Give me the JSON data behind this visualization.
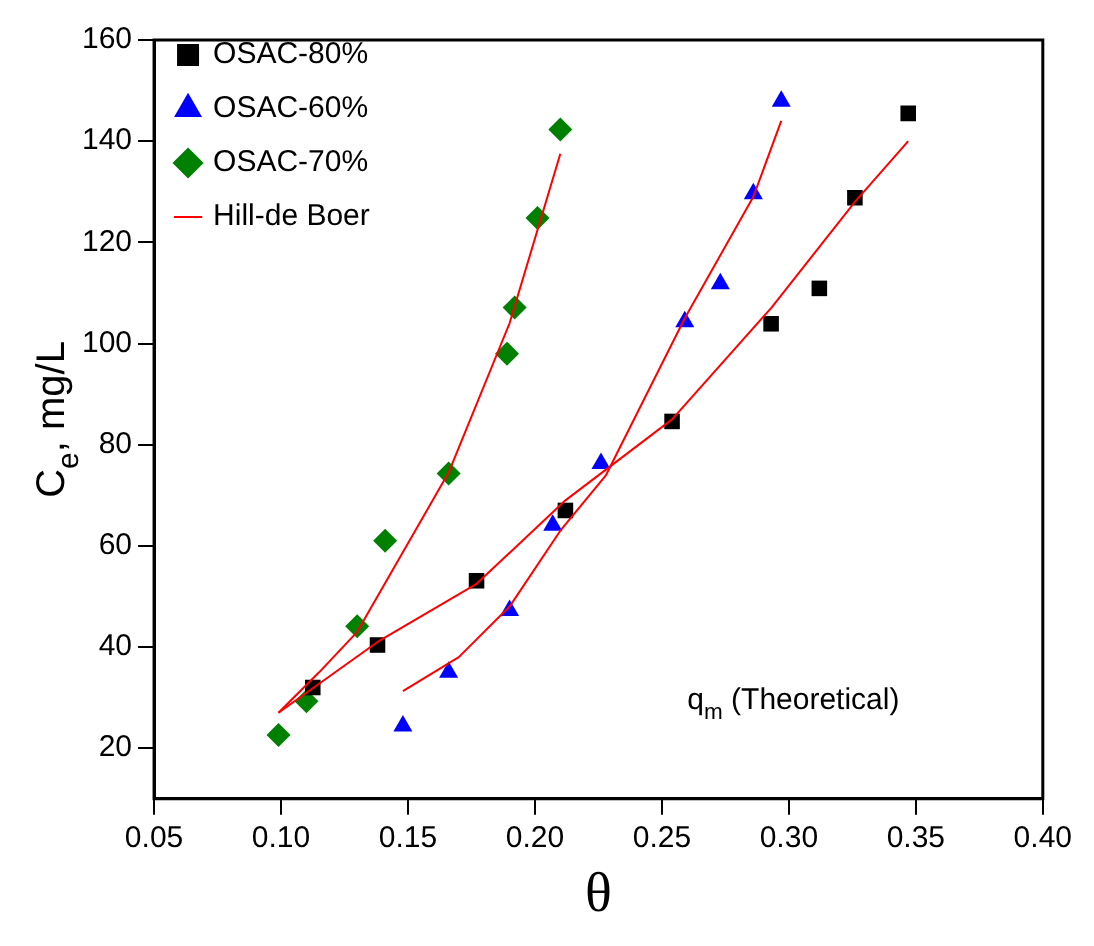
{
  "chart_data": {
    "type": "scatter",
    "xlabel": "θ",
    "ylabel": "C$_{e}$, mg/L",
    "xlim": [
      0.05,
      0.4
    ],
    "ylim": [
      10,
      160
    ],
    "xticks": [
      {
        "value": 0.05,
        "label": "0.05"
      },
      {
        "value": 0.1,
        "label": "0.10"
      },
      {
        "value": 0.15,
        "label": "0.15"
      },
      {
        "value": 0.2,
        "label": "0.20"
      },
      {
        "value": 0.25,
        "label": "0.25"
      },
      {
        "value": 0.3,
        "label": "0.30"
      },
      {
        "value": 0.35,
        "label": "0.35"
      },
      {
        "value": 0.4,
        "label": "0.40"
      }
    ],
    "yticks": [
      20,
      40,
      60,
      80,
      100,
      120,
      140,
      160
    ],
    "grid": false,
    "legend": "top left",
    "annotations": [
      "q$_{m}$ (Theoretical)"
    ],
    "series": [
      {
        "name": "OSAC-80%",
        "marker": "square",
        "color": "#000000",
        "x": [
          0.1125,
          0.138,
          0.177,
          0.212,
          0.254,
          0.293,
          0.312,
          0.326,
          0.347
        ],
        "values": [
          32.0,
          40.4,
          53.1,
          67.0,
          84.6,
          103.9,
          110.9,
          128.8,
          145.5
        ]
      },
      {
        "name": "OSAC-60%",
        "marker": "triangle",
        "color": "#0000ff",
        "x": [
          0.148,
          0.166,
          0.19,
          0.207,
          0.226,
          0.259,
          0.273,
          0.286,
          0.297
        ],
        "values": [
          24.4,
          35.0,
          47.2,
          64.1,
          76.3,
          104.3,
          111.8,
          129.6,
          147.9
        ]
      },
      {
        "name": "OSAC-70%",
        "marker": "diamond",
        "color": "#008000",
        "x": [
          0.099,
          0.11,
          0.13,
          0.141,
          0.166,
          0.189,
          0.192,
          0.201,
          0.21
        ],
        "values": [
          22.6,
          29.3,
          44.1,
          61.0,
          74.3,
          98.0,
          107.1,
          124.8,
          142.3
        ]
      },
      {
        "name": "Hill-de Boer",
        "type": "line",
        "marker": "none",
        "color": "#ff0000",
        "x": [
          0.099,
          0.138,
          0.177,
          0.212,
          0.254,
          0.293,
          0.326,
          0.347
        ],
        "values": [
          27,
          41,
          52.5,
          69,
          85,
          107,
          128,
          140
        ]
      },
      {
        "type": "line",
        "marker": "none",
        "color": "#ff0000",
        "x": [
          0.148,
          0.17,
          0.19,
          0.21,
          0.228,
          0.259,
          0.286,
          0.297
        ],
        "values": [
          31.3,
          38,
          48,
          63,
          74,
          105,
          129,
          144
        ]
      },
      {
        "type": "line",
        "marker": "none",
        "color": "#ff0000",
        "x": [
          0.099,
          0.115,
          0.13,
          0.166,
          0.19,
          0.21
        ],
        "values": [
          27,
          35,
          43,
          74.5,
          104,
          137.5
        ]
      }
    ]
  }
}
